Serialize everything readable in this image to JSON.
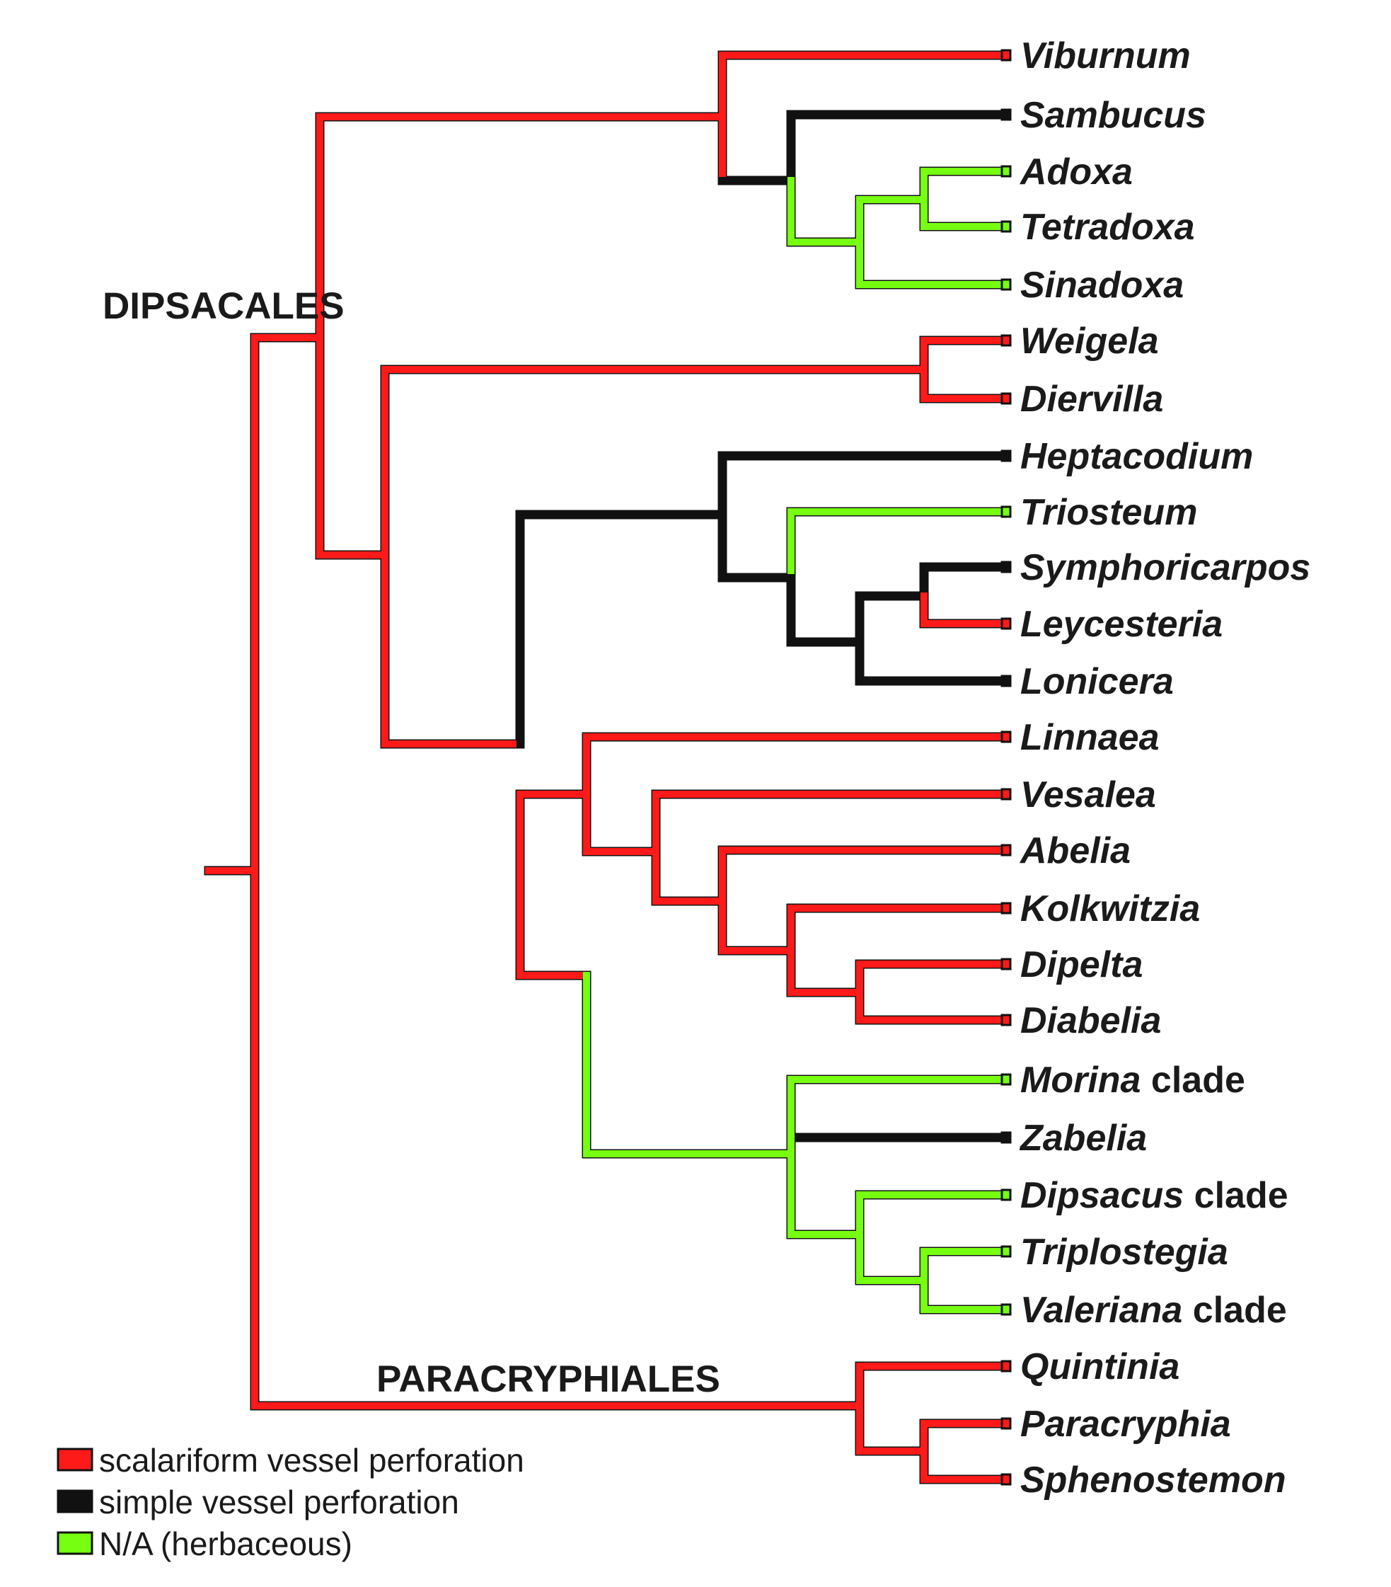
{
  "groups": {
    "dipsacales": "DIPSACALES",
    "paracryphiales": "PARACRYPHIALES"
  },
  "colors": {
    "scalariform": "#ff1a1a",
    "simple": "#111111",
    "na": "#77ff11",
    "outline": "#111111"
  },
  "taxa": [
    {
      "name": "Viburnum",
      "suffix": "",
      "state": "scalariform"
    },
    {
      "name": "Sambucus",
      "suffix": "",
      "state": "simple"
    },
    {
      "name": "Adoxa",
      "suffix": "",
      "state": "na"
    },
    {
      "name": "Tetradoxa",
      "suffix": "",
      "state": "na"
    },
    {
      "name": "Sinadoxa",
      "suffix": "",
      "state": "na"
    },
    {
      "name": "Weigela",
      "suffix": "",
      "state": "scalariform"
    },
    {
      "name": "Diervilla",
      "suffix": "",
      "state": "scalariform"
    },
    {
      "name": "Heptacodium",
      "suffix": "",
      "state": "simple"
    },
    {
      "name": "Triosteum",
      "suffix": "",
      "state": "na"
    },
    {
      "name": "Symphoricarpos",
      "suffix": "",
      "state": "simple"
    },
    {
      "name": "Leycesteria",
      "suffix": "",
      "state": "scalariform"
    },
    {
      "name": "Lonicera",
      "suffix": "",
      "state": "simple"
    },
    {
      "name": "Linnaea",
      "suffix": "",
      "state": "scalariform"
    },
    {
      "name": "Vesalea",
      "suffix": "",
      "state": "scalariform"
    },
    {
      "name": "Abelia",
      "suffix": "",
      "state": "scalariform"
    },
    {
      "name": "Kolkwitzia",
      "suffix": "",
      "state": "scalariform"
    },
    {
      "name": "Dipelta",
      "suffix": "",
      "state": "scalariform"
    },
    {
      "name": "Diabelia",
      "suffix": "",
      "state": "scalariform"
    },
    {
      "name": "Morina",
      "suffix": " clade",
      "state": "na"
    },
    {
      "name": "Zabelia",
      "suffix": "",
      "state": "simple"
    },
    {
      "name": "Dipsacus",
      "suffix": " clade",
      "state": "na"
    },
    {
      "name": "Triplostegia",
      "suffix": "",
      "state": "na"
    },
    {
      "name": "Valeriana",
      "suffix": " clade",
      "state": "na"
    },
    {
      "name": "Quintinia",
      "suffix": "",
      "state": "scalariform"
    },
    {
      "name": "Paracryphia",
      "suffix": "",
      "state": "scalariform"
    },
    {
      "name": "Sphenostemon",
      "suffix": "",
      "state": "scalariform"
    }
  ],
  "legend": [
    {
      "label": "scalariform vessel perforation",
      "state": "scalariform"
    },
    {
      "label": "simple vessel perforation",
      "state": "simple"
    },
    {
      "label": "N/A (herbaceous)",
      "state": "na"
    }
  ]
}
